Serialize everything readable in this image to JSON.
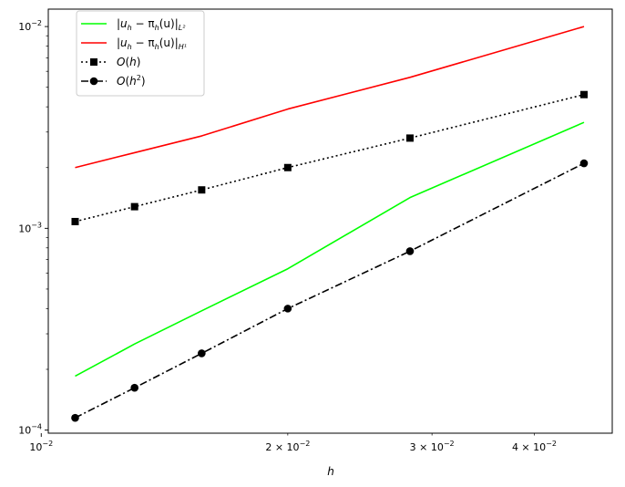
{
  "chart_data": {
    "type": "line",
    "title": "",
    "xlabel": "h",
    "ylabel": "",
    "xscale": "log",
    "yscale": "log",
    "xlim": [
      0.0102,
      0.0498
    ],
    "ylim": [
      9.65e-05,
      0.0122
    ],
    "grid": false,
    "legend_position": "upper-left",
    "x": [
      0.011,
      0.013,
      0.0157,
      0.02,
      0.0282,
      0.046
    ],
    "series": [
      {
        "name": "|u_h − π_h(u)|_{L²}",
        "legend_parts": [
          "|",
          "u",
          "h",
          " − π",
          "h",
          "(u)|",
          "L²"
        ],
        "color": "#00ff00",
        "linestyle": "solid",
        "marker": "none",
        "values": [
          0.000185,
          0.000267,
          0.00039,
          0.00063,
          0.00142,
          0.00335
        ]
      },
      {
        "name": "|u_h − π_h(u)|_{H¹}",
        "legend_parts": [
          "|",
          "u",
          "h",
          " − π",
          "h",
          "(u)|",
          "H¹"
        ],
        "color": "#ff0000",
        "linestyle": "solid",
        "marker": "none",
        "values": [
          0.002,
          0.00237,
          0.00287,
          0.0039,
          0.0056,
          0.01
        ]
      },
      {
        "name": "O(h)",
        "legend_parts": [
          "O",
          "(",
          "h",
          ")"
        ],
        "color": "#000000",
        "linestyle": "dotted",
        "marker": "square",
        "values": [
          0.00108,
          0.00128,
          0.00155,
          0.002,
          0.0028,
          0.0046
        ]
      },
      {
        "name": "O(h²)",
        "legend_parts": [
          "O",
          "(",
          "h",
          "2",
          ")"
        ],
        "color": "#000000",
        "linestyle": "dashdot",
        "marker": "circle",
        "values": [
          0.000115,
          0.000162,
          0.00024,
          0.0004,
          0.00077,
          0.0021
        ]
      }
    ],
    "x_major_ticks": [
      {
        "value": 0.01,
        "mantissa": "",
        "base": "10",
        "exp": "−2"
      }
    ],
    "x_labeled_minor_ticks": [
      {
        "value": 0.02,
        "mantissa": "2 × ",
        "base": "10",
        "exp": "−2"
      },
      {
        "value": 0.03,
        "mantissa": "3 × ",
        "base": "10",
        "exp": "−2"
      },
      {
        "value": 0.04,
        "mantissa": "4 × ",
        "base": "10",
        "exp": "−2"
      }
    ],
    "y_major_ticks": [
      {
        "value": 0.0001,
        "base": "10",
        "exp": "−4"
      },
      {
        "value": 0.001,
        "base": "10",
        "exp": "−3"
      },
      {
        "value": 0.01,
        "base": "10",
        "exp": "−2"
      }
    ]
  }
}
